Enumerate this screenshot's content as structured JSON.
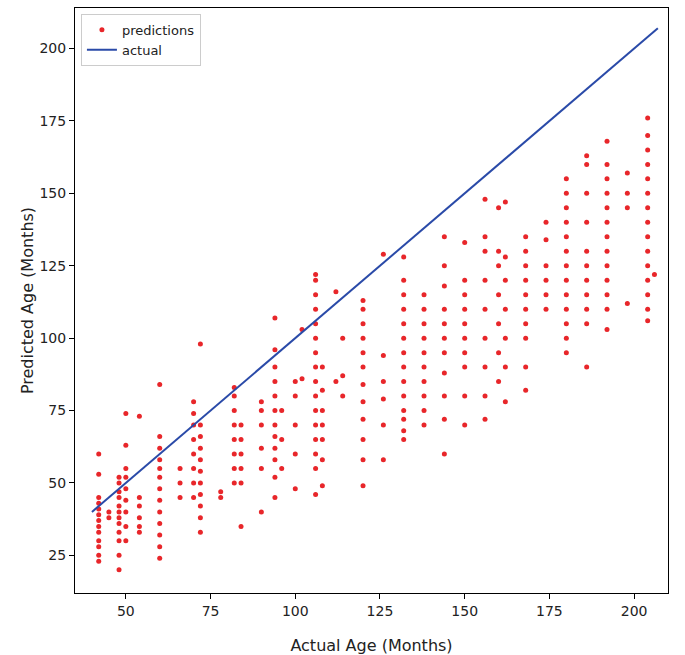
{
  "chart_data": {
    "type": "scatter",
    "x_label": "Actual Age (Months)",
    "y_label": "Predicted Age (Months)",
    "xlim": [
      35,
      210
    ],
    "ylim": [
      12,
      214
    ],
    "xticks": [
      50,
      75,
      100,
      125,
      150,
      175,
      200
    ],
    "yticks": [
      25,
      50,
      75,
      100,
      125,
      150,
      175,
      200
    ],
    "grid": false,
    "legend": "upper left",
    "series": [
      {
        "name": "predictions",
        "type": "scatter",
        "marker": "circle",
        "color": "#e8262a",
        "x": [
          42,
          42,
          42,
          42,
          42,
          42,
          42,
          42,
          42,
          42,
          42,
          42,
          42,
          45,
          45,
          48,
          48,
          48,
          48,
          48,
          48,
          48,
          48,
          48,
          48,
          48,
          48,
          50,
          50,
          50,
          50,
          50,
          50,
          50,
          50,
          50,
          54,
          54,
          54,
          54,
          54,
          54,
          60,
          60,
          60,
          60,
          60,
          60,
          60,
          60,
          60,
          60,
          60,
          60,
          60,
          66,
          66,
          66,
          70,
          70,
          70,
          70,
          70,
          70,
          70,
          70,
          72,
          72,
          72,
          72,
          72,
          72,
          72,
          72,
          72,
          72,
          72,
          78,
          78,
          82,
          82,
          82,
          82,
          82,
          82,
          82,
          82,
          84,
          84,
          84,
          84,
          84,
          84,
          90,
          90,
          90,
          90,
          90,
          90,
          94,
          94,
          94,
          94,
          94,
          94,
          94,
          94,
          94,
          94,
          94,
          94,
          96,
          96,
          96,
          100,
          100,
          100,
          100,
          100,
          102,
          102,
          106,
          106,
          106,
          106,
          106,
          106,
          106,
          106,
          106,
          106,
          106,
          106,
          106,
          106,
          106,
          106,
          108,
          108,
          108,
          108,
          108,
          108,
          108,
          112,
          112,
          114,
          114,
          114,
          120,
          120,
          120,
          120,
          120,
          120,
          120,
          120,
          120,
          120,
          120,
          120,
          126,
          126,
          126,
          126,
          126,
          126,
          132,
          132,
          132,
          132,
          132,
          132,
          132,
          132,
          132,
          132,
          132,
          132,
          132,
          132,
          138,
          138,
          138,
          138,
          138,
          138,
          138,
          138,
          138,
          138,
          144,
          144,
          144,
          144,
          144,
          144,
          144,
          144,
          144,
          144,
          144,
          150,
          150,
          150,
          150,
          150,
          150,
          150,
          150,
          150,
          150,
          156,
          156,
          156,
          156,
          156,
          156,
          156,
          156,
          156,
          160,
          160,
          160,
          160,
          160,
          160,
          160,
          162,
          162,
          162,
          162,
          162,
          162,
          162,
          168,
          168,
          168,
          168,
          168,
          168,
          168,
          168,
          168,
          168,
          174,
          174,
          174,
          174,
          174,
          174,
          180,
          180,
          180,
          180,
          180,
          180,
          180,
          180,
          180,
          180,
          180,
          180,
          180,
          186,
          186,
          186,
          186,
          186,
          186,
          186,
          186,
          186,
          186,
          186,
          192,
          192,
          192,
          192,
          192,
          192,
          192,
          192,
          192,
          192,
          192,
          192,
          192,
          198,
          198,
          198,
          198,
          204,
          204,
          204,
          204,
          204,
          204,
          204,
          204,
          204,
          204,
          204,
          204,
          204,
          204,
          204,
          206
        ],
        "values": [
          23,
          25,
          28,
          30,
          33,
          35,
          37,
          39,
          41,
          43,
          45,
          53,
          60,
          38,
          40,
          20,
          25,
          30,
          33,
          36,
          38,
          40,
          42,
          45,
          47,
          50,
          52,
          30,
          35,
          40,
          44,
          48,
          52,
          55,
          63,
          74,
          33,
          35,
          38,
          42,
          45,
          73,
          24,
          28,
          32,
          36,
          40,
          44,
          48,
          52,
          55,
          58,
          62,
          66,
          84,
          45,
          50,
          55,
          45,
          50,
          55,
          60,
          65,
          70,
          74,
          78,
          33,
          38,
          42,
          46,
          50,
          54,
          58,
          62,
          66,
          70,
          98,
          45,
          47,
          50,
          55,
          60,
          65,
          70,
          75,
          80,
          83,
          35,
          50,
          55,
          60,
          65,
          70,
          40,
          55,
          62,
          70,
          75,
          78,
          45,
          52,
          58,
          62,
          66,
          70,
          75,
          80,
          85,
          90,
          96,
          107,
          55,
          65,
          75,
          48,
          60,
          70,
          80,
          85,
          86,
          103,
          46,
          55,
          60,
          65,
          70,
          75,
          80,
          85,
          90,
          95,
          100,
          105,
          110,
          115,
          120,
          122,
          49,
          58,
          65,
          70,
          75,
          82,
          90,
          85,
          116,
          80,
          87,
          100,
          49,
          58,
          65,
          72,
          78,
          84,
          90,
          95,
          100,
          105,
          110,
          113,
          58,
          70,
          79,
          85,
          94,
          129,
          65,
          68,
          72,
          75,
          80,
          85,
          90,
          95,
          100,
          105,
          110,
          115,
          120,
          128,
          70,
          75,
          80,
          85,
          90,
          95,
          100,
          105,
          110,
          115,
          60,
          72,
          80,
          88,
          95,
          100,
          105,
          110,
          118,
          125,
          135,
          70,
          80,
          90,
          95,
          100,
          105,
          110,
          115,
          120,
          133,
          72,
          80,
          90,
          100,
          110,
          120,
          130,
          135,
          148,
          85,
          95,
          105,
          115,
          125,
          130,
          145,
          78,
          90,
          100,
          110,
          120,
          128,
          147,
          82,
          90,
          100,
          105,
          110,
          115,
          120,
          125,
          130,
          135,
          110,
          115,
          120,
          125,
          134,
          140,
          95,
          100,
          105,
          110,
          115,
          120,
          125,
          130,
          135,
          140,
          145,
          150,
          155,
          90,
          105,
          110,
          115,
          120,
          125,
          130,
          140,
          150,
          160,
          163,
          103,
          110,
          115,
          120,
          125,
          130,
          135,
          140,
          145,
          150,
          155,
          160,
          168,
          112,
          145,
          150,
          157,
          106,
          110,
          115,
          120,
          125,
          130,
          135,
          140,
          145,
          150,
          155,
          160,
          165,
          170,
          176,
          122
        ]
      },
      {
        "name": "actual",
        "type": "line",
        "line_style": "solid",
        "color": "#2a4aa8",
        "x": [
          40,
          207
        ],
        "values": [
          40,
          207
        ]
      }
    ]
  }
}
